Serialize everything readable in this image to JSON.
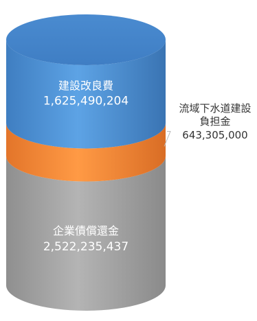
{
  "chart_data": {
    "type": "stacked-cylinder",
    "unit": "",
    "total": 4791030641,
    "segments": [
      {
        "name": "企業債償還金",
        "value": 2522235437,
        "value_label": "2,522,235,437",
        "color": "#a3a3a3"
      },
      {
        "name": "流域下水道建設負担金",
        "name_lines": [
          "流域下水道建設",
          "負担金"
        ],
        "value": 643305000,
        "value_label": "643,305,000",
        "color": "#f08a35"
      },
      {
        "name": "建設改良費",
        "value": 1625490204,
        "value_label": "1,625,490,204",
        "color": "#4d8fd2"
      }
    ]
  }
}
